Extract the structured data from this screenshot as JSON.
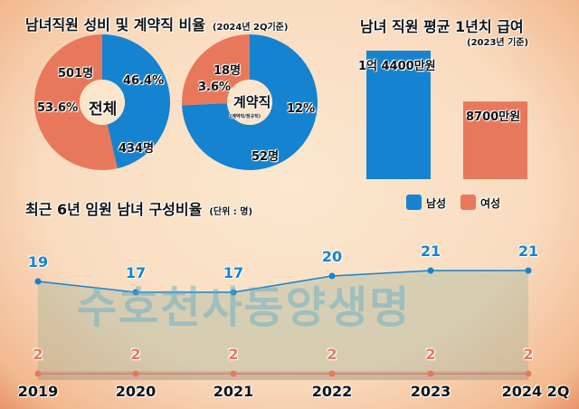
{
  "colors": {
    "male": "#1583cf",
    "female": "#e8785c"
  },
  "chart_data": [
    {
      "type": "pie",
      "title": "남녀직원 성비 및 계약직 비율",
      "subtitle": "(2024년 2Q기준)",
      "center_label": "전체",
      "slices": [
        {
          "name": "남성",
          "value": 46.4,
          "label_pct": "46.4%",
          "label_count": "434명"
        },
        {
          "name": "여성",
          "value": 53.6,
          "label_pct": "53.6%",
          "label_count": "501명"
        }
      ]
    },
    {
      "type": "pie",
      "center_label": "계약직",
      "center_sublabel": "(계약직/정규직)",
      "slices": [
        {
          "name": "남성",
          "value": 52,
          "label_pct": "12%",
          "label_count": "52명"
        },
        {
          "name": "여성",
          "value": 18,
          "label_pct": "3.6%",
          "label_count": "18명"
        }
      ]
    },
    {
      "type": "bar",
      "title": "남녀 직원 평균 1년치 급여",
      "subtitle": "(2023년 기준)",
      "unit": "만원",
      "categories": [
        "남성",
        "여성"
      ],
      "values": [
        14400,
        8700
      ],
      "labels": [
        "1억 4400만원",
        "8700만원"
      ],
      "legend": [
        "남성",
        "여성"
      ],
      "legend_position": "bottom"
    },
    {
      "type": "line",
      "title": "최근 6년 임원 남녀 구성비율",
      "subtitle": "(단위 : 명)",
      "x": [
        "2019",
        "2020",
        "2021",
        "2022",
        "2023",
        "2024 2Q"
      ],
      "series": [
        {
          "name": "남성",
          "values": [
            19,
            17,
            17,
            20,
            21,
            21
          ]
        },
        {
          "name": "여성",
          "values": [
            2,
            2,
            2,
            2,
            2,
            2
          ]
        }
      ],
      "legend_position": "top-right"
    }
  ],
  "watermark": "수호천사동양생명"
}
